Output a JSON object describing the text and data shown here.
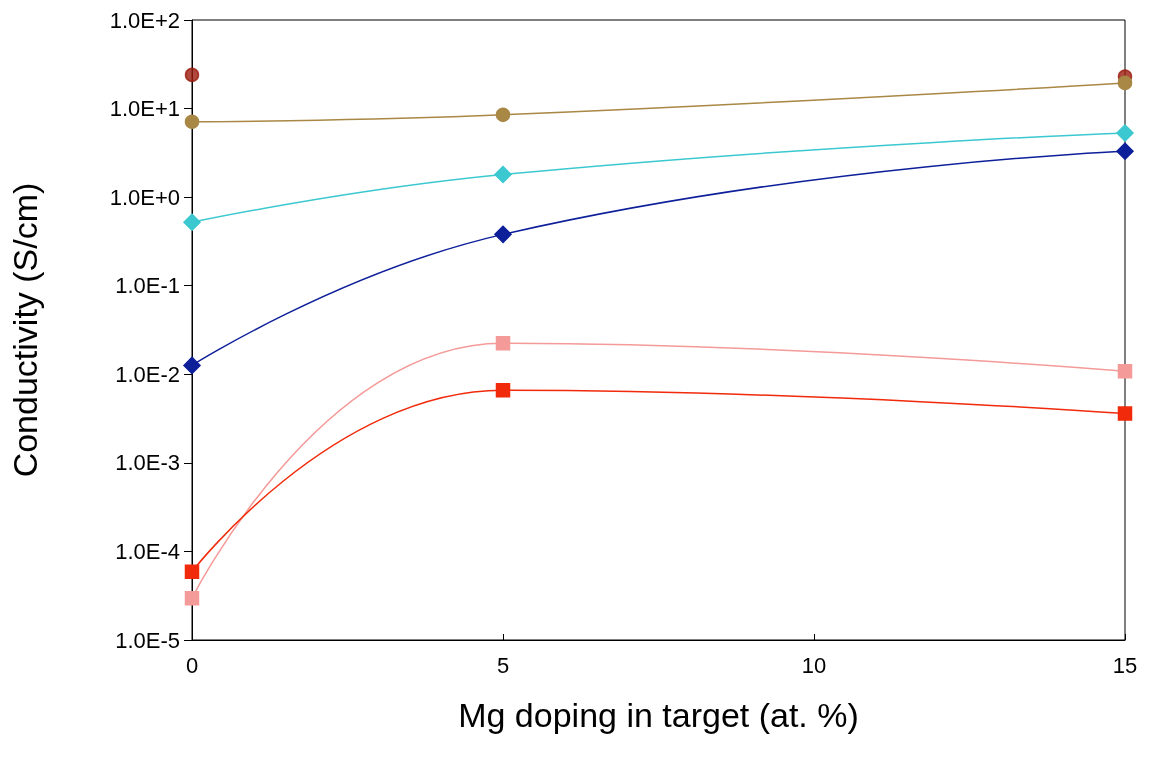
{
  "chart_data": {
    "type": "line",
    "xlabel": "Mg doping in target (at. %)",
    "ylabel": "Conductivity (S/cm)",
    "x": [
      0,
      5,
      15
    ],
    "series": [
      {
        "type": "scatter",
        "color": "#9b1a0c",
        "marker": "circle",
        "values": [
          24,
          null,
          23
        ]
      },
      {
        "color": "#a98745",
        "marker": "circle",
        "values": [
          7.1,
          8.5,
          19.5
        ]
      },
      {
        "color": "#3cc8d0",
        "marker": "diamond",
        "values": [
          0.52,
          1.8,
          5.3
        ]
      },
      {
        "color": "#0e1f9a",
        "marker": "diamond",
        "values": [
          0.0126,
          0.38,
          3.3
        ]
      },
      {
        "color": "#f49a98",
        "marker": "square",
        "values": [
          2.96e-05,
          0.0224,
          0.0108
        ]
      },
      {
        "color": "#f02a0a",
        "marker": "square",
        "values": [
          5.9e-05,
          0.0066,
          0.0036
        ]
      }
    ],
    "log": "y",
    "xlim": [
      0,
      15
    ],
    "xticks": [
      0,
      5,
      10,
      15
    ],
    "ylim": [
      1e-05,
      100
    ],
    "yticks": [
      {
        "value": 1e-05,
        "label": "1.0E-5"
      },
      {
        "value": 0.0001,
        "label": "1.0E-4"
      },
      {
        "value": 0.001,
        "label": "1.0E-3"
      },
      {
        "value": 0.01,
        "label": "1.0E-2"
      },
      {
        "value": 0.1,
        "label": "1.0E-1"
      },
      {
        "value": 1,
        "label": "1.0E+0"
      },
      {
        "value": 10,
        "label": "1.0E+1"
      },
      {
        "value": 100,
        "label": "1.0E+2"
      }
    ],
    "grid": false,
    "line_style": "solid"
  }
}
